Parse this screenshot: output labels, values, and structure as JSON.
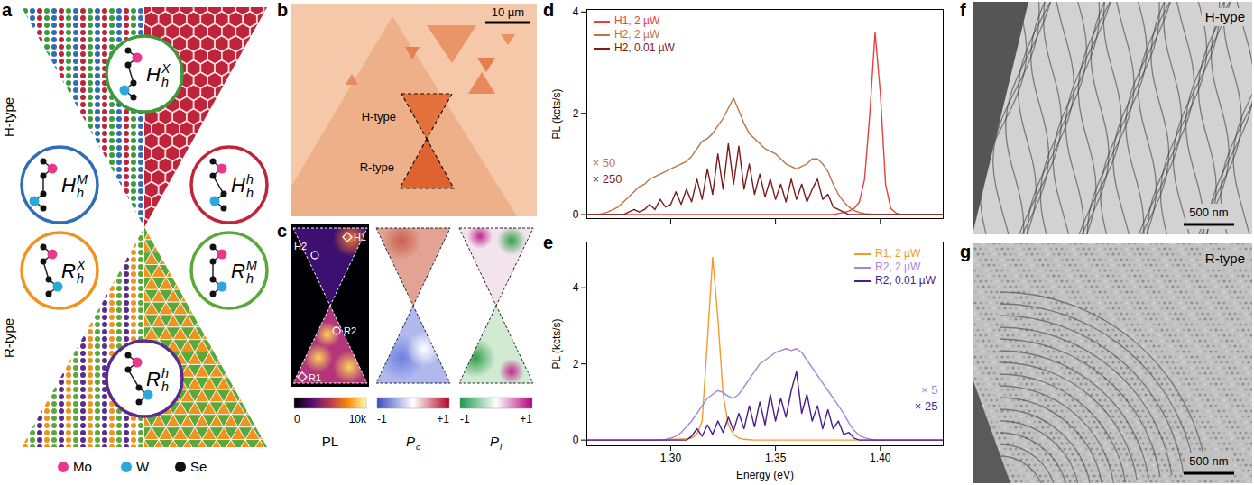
{
  "figure": {
    "panels": {
      "a": {
        "label": "a",
        "groups": [
          {
            "name": "H-type",
            "stackings": [
              {
                "base": "H",
                "sub": "h",
                "sup": "X",
                "color": "#3a9b3a"
              },
              {
                "base": "H",
                "sub": "h",
                "sup": "M",
                "color": "#2f6db5"
              },
              {
                "base": "H",
                "sub": "h",
                "sup": "h",
                "color": "#c0243a"
              }
            ]
          },
          {
            "name": "R-type",
            "stackings": [
              {
                "base": "R",
                "sub": "h",
                "sup": "X",
                "color": "#f0921e"
              },
              {
                "base": "R",
                "sub": "h",
                "sup": "M",
                "color": "#5aa83a"
              },
              {
                "base": "R",
                "sub": "h",
                "sup": "h",
                "color": "#5a2d8c"
              }
            ]
          }
        ],
        "atoms": [
          {
            "name": "Mo",
            "color": "#e8388c"
          },
          {
            "name": "W",
            "color": "#2aa7dc"
          },
          {
            "name": "Se",
            "color": "#111111"
          }
        ]
      },
      "b": {
        "label": "b",
        "regions": [
          "H-type",
          "R-type"
        ],
        "scale_bar": "10 µm"
      },
      "c": {
        "label": "c",
        "maps": [
          {
            "name": {
              "base": "PL"
            },
            "colors": [
              "#000004",
              "#57106e",
              "#bc3754",
              "#f98e09",
              "#fcffa4"
            ],
            "colorbar_range": [
              0,
              10000
            ],
            "colorbar_ticks": [
              0,
              {
                "value": 10000,
                "label": "10k"
              }
            ]
          },
          {
            "name": {
              "base": "P",
              "sub": "c"
            },
            "colors": [
              "#3b4cc0",
              "#ffffff",
              "#b40426"
            ],
            "colorbar_range": [
              -1,
              1
            ],
            "colorbar_ticks": [
              -1,
              {
                "value": 1,
                "label": "+1"
              }
            ]
          },
          {
            "name": {
              "base": "P",
              "sub": "l"
            },
            "colors": [
              "#1a9850",
              "#ffffff",
              "#b3007a"
            ],
            "colorbar_range": [
              -1,
              1
            ],
            "colorbar_ticks": [
              -1,
              {
                "value": 1,
                "label": "+1"
              }
            ]
          }
        ],
        "markers": [
          {
            "name": "H1",
            "marker": "diamond"
          },
          {
            "name": "H2",
            "marker": "circle"
          },
          {
            "name": "R1",
            "marker": "diamond"
          },
          {
            "name": "R2",
            "marker": "circle"
          }
        ]
      },
      "f": {
        "label": "f",
        "title": "H-type",
        "scale_bar": "500 nm"
      },
      "g": {
        "label": "g",
        "title": "R-type",
        "scale_bar": "500 nm"
      }
    }
  },
  "chart_data": [
    {
      "label": "d",
      "type": "line",
      "y_label": "PL (kcts/s)",
      "tick_labels": "y",
      "legend": "upper left",
      "x": [
        1.26,
        1.2625,
        1.265,
        1.2675,
        1.27,
        1.2725,
        1.275,
        1.2775,
        1.28,
        1.2825,
        1.285,
        1.2875,
        1.29,
        1.2925,
        1.295,
        1.2975,
        1.3,
        1.3025,
        1.305,
        1.3075,
        1.31,
        1.3125,
        1.315,
        1.3175,
        1.32,
        1.3225,
        1.325,
        1.3275,
        1.33,
        1.3325,
        1.335,
        1.3375,
        1.34,
        1.3425,
        1.345,
        1.3475,
        1.35,
        1.3525,
        1.355,
        1.3575,
        1.36,
        1.3625,
        1.365,
        1.3675,
        1.37,
        1.3725,
        1.375,
        1.3775,
        1.38,
        1.3825,
        1.385,
        1.3875,
        1.39,
        1.3925,
        1.395,
        1.3975,
        1.4,
        1.4025,
        1.405,
        1.4075,
        1.41,
        1.4125,
        1.415,
        1.4175,
        1.42,
        1.4225,
        1.425,
        1.4275,
        1.43
      ],
      "xlim": [
        1.26,
        1.43
      ],
      "xticks": [
        1.3,
        1.35,
        1.4
      ],
      "ylim": [
        -0.08,
        4.05
      ],
      "yticks": [
        0,
        2,
        4
      ],
      "series": [
        {
          "name": "H1, 2 µW",
          "color": "#e8403a",
          "values": [
            0,
            0,
            0,
            0,
            0,
            0,
            0,
            0,
            0,
            0,
            0,
            0,
            0,
            0,
            0,
            0,
            0,
            0,
            0,
            0,
            0,
            0,
            0,
            0,
            0,
            0,
            0,
            0,
            0,
            0,
            0,
            0,
            0,
            0,
            0,
            0,
            0,
            0,
            0,
            0,
            0,
            0,
            0,
            0,
            0,
            0,
            0,
            0,
            0.02,
            0.04,
            0.07,
            0.12,
            0.25,
            0.7,
            2.0,
            3.6,
            2.4,
            0.6,
            0.12,
            0.03,
            0,
            0,
            0,
            0,
            0,
            0,
            0,
            0,
            0
          ]
        },
        {
          "name": "H2, 2 µW",
          "color": "#b8754a",
          "annotation": "× 50",
          "values": [
            0,
            0,
            0,
            0.02,
            0.05,
            0.1,
            0.15,
            0.25,
            0.35,
            0.45,
            0.55,
            0.6,
            0.7,
            0.75,
            0.8,
            0.85,
            0.9,
            0.95,
            1.0,
            1.05,
            1.15,
            1.3,
            1.45,
            1.5,
            1.6,
            1.75,
            1.9,
            2.1,
            2.3,
            2.05,
            1.8,
            1.6,
            1.5,
            1.4,
            1.3,
            1.25,
            1.2,
            1.1,
            1.0,
            0.95,
            0.9,
            0.95,
            1.0,
            1.1,
            1.1,
            1.0,
            0.85,
            0.6,
            0.4,
            0.25,
            0.15,
            0.08,
            0.04,
            0.02,
            0.01,
            0,
            0,
            0,
            0,
            0,
            0,
            0,
            0,
            0,
            0,
            0,
            0,
            0,
            0
          ]
        },
        {
          "name": "H2, 0.01 µW",
          "color": "#7b1c1c",
          "annotation": "× 250",
          "values": [
            0,
            0,
            0,
            0,
            0,
            0,
            0,
            0,
            0.05,
            0.1,
            0.05,
            0.1,
            0.2,
            0.1,
            0.3,
            0.15,
            0.2,
            0.45,
            0.2,
            0.5,
            0.25,
            0.7,
            0.3,
            0.9,
            0.4,
            1.2,
            0.5,
            1.4,
            0.6,
            1.35,
            0.5,
            1.0,
            0.4,
            0.8,
            0.35,
            0.7,
            0.3,
            0.6,
            0.25,
            0.7,
            0.3,
            0.6,
            0.25,
            0.5,
            0.7,
            0.3,
            0.4,
            0.15,
            0.1,
            0.05,
            0,
            0,
            0,
            0,
            0,
            0,
            0,
            0,
            0,
            0,
            0,
            0,
            0,
            0,
            0,
            0,
            0,
            0,
            0
          ]
        }
      ]
    },
    {
      "label": "e",
      "type": "line",
      "x_label": "Energy (eV)",
      "y_label": "PL (kcts/s)",
      "tick_labels": true,
      "legend": "upper right",
      "x": [
        1.26,
        1.2625,
        1.265,
        1.2675,
        1.27,
        1.2725,
        1.275,
        1.2775,
        1.28,
        1.2825,
        1.285,
        1.2875,
        1.29,
        1.2925,
        1.295,
        1.2975,
        1.3,
        1.3025,
        1.305,
        1.3075,
        1.31,
        1.3125,
        1.315,
        1.3175,
        1.32,
        1.3225,
        1.325,
        1.3275,
        1.33,
        1.3325,
        1.335,
        1.3375,
        1.34,
        1.3425,
        1.345,
        1.3475,
        1.35,
        1.3525,
        1.355,
        1.3575,
        1.36,
        1.3625,
        1.365,
        1.3675,
        1.37,
        1.3725,
        1.375,
        1.3775,
        1.38,
        1.3825,
        1.385,
        1.3875,
        1.39,
        1.3925,
        1.395,
        1.3975,
        1.4,
        1.4025,
        1.405,
        1.4075,
        1.41,
        1.4125,
        1.415,
        1.4175,
        1.42,
        1.4225,
        1.425,
        1.4275,
        1.43
      ],
      "xlim": [
        1.26,
        1.43
      ],
      "xticks": [
        {
          "value": 1.3,
          "label": "1.30"
        },
        {
          "value": 1.35,
          "label": "1.35"
        },
        {
          "value": 1.4,
          "label": "1.40"
        }
      ],
      "ylim": [
        -0.15,
        5.2
      ],
      "yticks": [
        0,
        2,
        4
      ],
      "series": [
        {
          "name": "R1, 2 µW",
          "color": "#f29a2e",
          "values": [
            0,
            0,
            0,
            0,
            0,
            0,
            0,
            0,
            0,
            0,
            0,
            0,
            0,
            0,
            0.01,
            0.01,
            0.02,
            0.02,
            0.03,
            0.03,
            0.05,
            0.15,
            0.5,
            2.6,
            4.8,
            3.2,
            1.2,
            0.4,
            0.15,
            0.05,
            0.02,
            0.01,
            0,
            0,
            0,
            0,
            0,
            0,
            0,
            0,
            0,
            0,
            0,
            0,
            0,
            0,
            0,
            0,
            0,
            0,
            0,
            0,
            0,
            0,
            0,
            0,
            0,
            0,
            0,
            0,
            0,
            0,
            0,
            0,
            0,
            0,
            0,
            0,
            0
          ]
        },
        {
          "name": "R2, 2 µW",
          "color": "#a883d8",
          "annotation": "× 5",
          "values": [
            0,
            0,
            0,
            0,
            0,
            0,
            0,
            0,
            0,
            0,
            0,
            0,
            0,
            0,
            0,
            0.02,
            0.05,
            0.1,
            0.2,
            0.35,
            0.5,
            0.7,
            0.9,
            1.1,
            1.2,
            1.3,
            1.25,
            1.15,
            1.1,
            1.2,
            1.4,
            1.6,
            1.8,
            2.0,
            2.1,
            2.2,
            2.3,
            2.35,
            2.4,
            2.35,
            2.4,
            2.3,
            2.1,
            1.9,
            1.7,
            1.5,
            1.3,
            1.1,
            0.9,
            0.7,
            0.45,
            0.25,
            0.12,
            0.06,
            0.03,
            0,
            0,
            0,
            0,
            0,
            0,
            0,
            0,
            0,
            0,
            0,
            0,
            0,
            0
          ]
        },
        {
          "name": "R2, 0.01 µW",
          "color": "#4a1c8c",
          "annotation": "× 25",
          "values": [
            0,
            0,
            0,
            0,
            0,
            0,
            0,
            0,
            0,
            0,
            0,
            0,
            0,
            0,
            0,
            0,
            0,
            0,
            0,
            0,
            0.1,
            0.3,
            0.1,
            0.4,
            0.15,
            0.5,
            0.2,
            0.6,
            0.25,
            0.7,
            0.3,
            0.9,
            0.35,
            1.0,
            0.4,
            1.2,
            0.5,
            1.1,
            0.6,
            1.3,
            1.8,
            0.7,
            1.2,
            0.5,
            0.9,
            0.3,
            0.8,
            0.3,
            0.5,
            0.15,
            0.2,
            0.05,
            0,
            0,
            0,
            0,
            0,
            0,
            0,
            0,
            0,
            0,
            0,
            0,
            0,
            0,
            0,
            0,
            0
          ]
        }
      ]
    }
  ]
}
